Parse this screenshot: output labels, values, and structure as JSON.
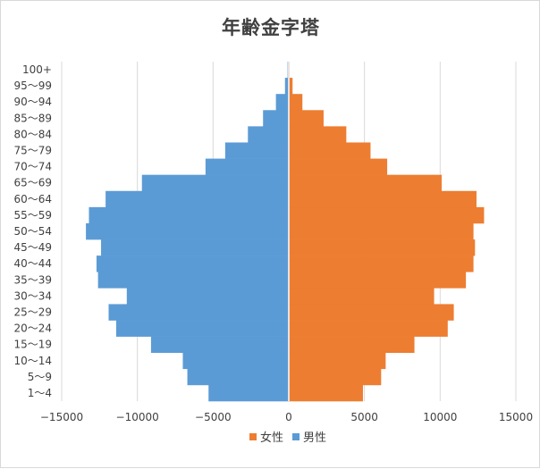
{
  "chart_data": {
    "type": "bar",
    "orientation": "horizontal",
    "title": "年齢金字塔",
    "categories": [
      "1～4",
      "5～9",
      "10～14",
      "15～19",
      "20～24",
      "25～29",
      "30～34",
      "35～39",
      "40～44",
      "45～49",
      "50～54",
      "55～59",
      "60～64",
      "65～69",
      "70～74",
      "75～79",
      "80～84",
      "85～89",
      "90～94",
      "95～99",
      "100+"
    ],
    "series": [
      {
        "name": "女性",
        "color": "#ed7d31",
        "values": [
          4900,
          6100,
          6400,
          8300,
          10500,
          10900,
          9600,
          11700,
          12200,
          12300,
          12200,
          12900,
          12400,
          10100,
          6500,
          5400,
          3800,
          2300,
          900,
          250,
          60
        ]
      },
      {
        "name": "男性",
        "color": "#5b9bd5",
        "values": [
          -5300,
          -6700,
          -7000,
          -9100,
          -11400,
          -11900,
          -10700,
          -12600,
          -12700,
          -12400,
          -13400,
          -13200,
          -12100,
          -9700,
          -5500,
          -4200,
          -2700,
          -1700,
          -850,
          -250,
          -80
        ]
      }
    ],
    "xlim": [
      -15000,
      15000
    ],
    "xticks": [
      -15000,
      -10000,
      -5000,
      0,
      5000,
      10000,
      15000
    ],
    "grid": true,
    "legend_position": "bottom"
  }
}
